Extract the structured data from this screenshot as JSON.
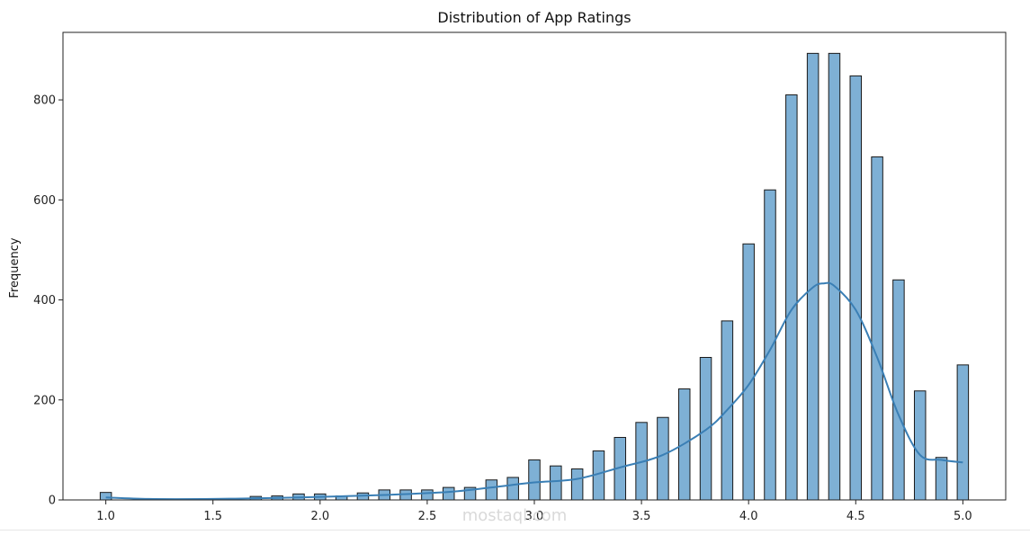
{
  "chart_data": {
    "type": "bar",
    "title": "Distribution of App Ratings",
    "xlabel": "",
    "ylabel": "Frequency",
    "xlim": [
      0.8,
      5.2
    ],
    "ylim": [
      0,
      935
    ],
    "xticks": [
      "1.0",
      "1.5",
      "2.0",
      "2.5",
      "3.0",
      "3.5",
      "4.0",
      "4.5",
      "5.0"
    ],
    "yticks": [
      "0",
      "200",
      "400",
      "600",
      "800"
    ],
    "bar_color": "#7eb0d5",
    "edge_color": "#1a1a1a",
    "kde_color": "#3a7fb5",
    "grid": false,
    "legend": "none",
    "bins": {
      "x": [
        1.0,
        1.7,
        1.8,
        1.9,
        2.0,
        2.1,
        2.2,
        2.3,
        2.4,
        2.5,
        2.6,
        2.7,
        2.8,
        2.9,
        3.0,
        3.1,
        3.2,
        3.3,
        3.4,
        3.5,
        3.6,
        3.7,
        3.8,
        3.9,
        4.0,
        4.1,
        4.2,
        4.3,
        4.4,
        4.5,
        4.6,
        4.7,
        4.8,
        4.9,
        5.0
      ],
      "values": [
        15,
        7,
        8,
        12,
        12,
        8,
        14,
        20,
        20,
        20,
        25,
        25,
        40,
        45,
        80,
        68,
        62,
        98,
        125,
        155,
        165,
        222,
        285,
        358,
        512,
        620,
        810,
        893,
        893,
        848,
        686,
        440,
        218,
        85,
        270
      ]
    },
    "kde": {
      "x": [
        1.0,
        1.2,
        1.5,
        1.8,
        2.0,
        2.3,
        2.6,
        2.8,
        3.0,
        3.2,
        3.4,
        3.6,
        3.8,
        3.9,
        4.0,
        4.1,
        4.2,
        4.3,
        4.35,
        4.4,
        4.5,
        4.6,
        4.7,
        4.8,
        4.9,
        5.0
      ],
      "y": [
        5,
        2,
        2,
        4,
        6,
        10,
        16,
        25,
        35,
        42,
        65,
        90,
        140,
        180,
        230,
        300,
        380,
        425,
        433,
        428,
        380,
        285,
        170,
        90,
        80,
        75
      ]
    },
    "watermark": "mostaql.com"
  }
}
